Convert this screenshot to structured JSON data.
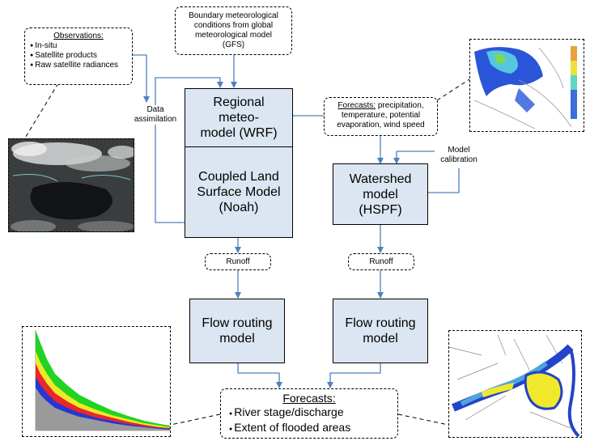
{
  "boundary": {
    "line1": "Boundary meteorological",
    "line2": "conditions from global",
    "line3": "meteorological model",
    "line4": "(GFS)"
  },
  "observations": {
    "title": "Observations:",
    "items": [
      "In-situ",
      "Satellite products",
      "Raw satellite radiances"
    ]
  },
  "data_assimilation": {
    "line1": "Data",
    "line2": "assimilation"
  },
  "wrf": {
    "line1": "Regional",
    "line2": "meteo-",
    "line3": "model (WRF)"
  },
  "noah": {
    "line1": "Coupled Land",
    "line2": "Surface Model",
    "line3": "(Noah)"
  },
  "forecasts_top": {
    "title": "Forecasts:",
    "line1": " precipitation,",
    "line2": "temperature, potential",
    "line3": "evaporation, wind speed"
  },
  "model_calibration": {
    "line1": "Model",
    "line2": "calibration"
  },
  "hspf": {
    "line1": "Watershed",
    "line2": "model",
    "line3": "(HSPF)"
  },
  "runoff_left": "Runoff",
  "runoff_right": "Runoff",
  "flow_left": {
    "line1": "Flow routing",
    "line2": "model"
  },
  "flow_right": {
    "line1": "Flow routing",
    "line2": "model"
  },
  "forecasts_bottom": {
    "title": "Forecasts:",
    "items": [
      "River stage/discharge",
      "Extent of flooded areas"
    ]
  },
  "colors": {
    "box_fill": "#dce6f2",
    "arrow": "#4f81bd"
  },
  "icons": {
    "satellite_image": "satellite-image",
    "precip_map": "precipitation-map",
    "hydrograph": "hydrograph-chart",
    "flood_map": "flood-extent-map"
  }
}
